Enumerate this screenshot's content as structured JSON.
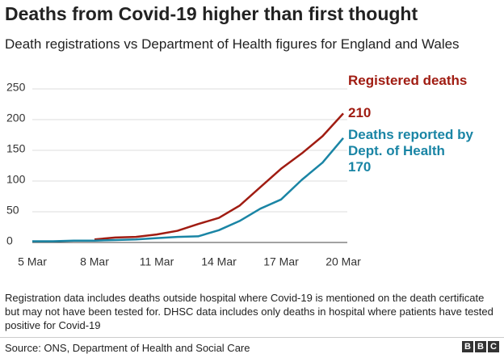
{
  "chart_data": {
    "type": "line",
    "title": "Deaths from Covid-19 higher than first thought",
    "subtitle": "Death registrations vs Department of Health figures for England and Wales",
    "categories": [
      "5 Mar",
      null,
      null,
      "8 Mar",
      null,
      null,
      "11 Mar",
      null,
      null,
      "14 Mar",
      null,
      null,
      "17 Mar",
      null,
      null,
      "20 Mar"
    ],
    "series": [
      {
        "name": "Registered deaths",
        "color": "#a01c12",
        "values": [
          null,
          null,
          null,
          5,
          8,
          9,
          13,
          19,
          30,
          40,
          60,
          90,
          120,
          145,
          173,
          210
        ]
      },
      {
        "name": "Deaths reported by Dept. of Health",
        "color": "#1a85a5",
        "values": [
          2,
          2,
          3,
          3,
          4,
          5,
          7,
          9,
          10,
          20,
          35,
          55,
          70,
          102,
          130,
          170
        ]
      }
    ],
    "ylim": [
      0,
      250
    ],
    "yticks": [
      0,
      50,
      100,
      150,
      200,
      250
    ],
    "grid": true,
    "footnote": "Registration data includes deaths outside hospital where Covid-19 is mentioned on the death certificate but may not have been tested for. DHSC data includes only deaths in hospital where patients have tested positive for Covid-19",
    "source": "Source: ONS, Department of Health and Social Care",
    "logo": [
      "B",
      "B",
      "C"
    ]
  }
}
